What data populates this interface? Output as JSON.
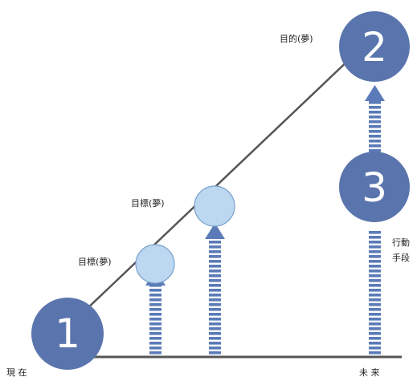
{
  "nodes": {
    "start": {
      "number": "1"
    },
    "purpose": {
      "number": "2",
      "label": "目的(夢)"
    },
    "action": {
      "number": "3"
    },
    "goal1": {
      "label": "目標(夢)"
    },
    "goal2": {
      "label": "目標(夢)"
    }
  },
  "side_label": {
    "line1": "行動",
    "line2": "手段"
  },
  "axis": {
    "start_label": "現 在",
    "end_label": "未 来"
  },
  "colors": {
    "big_circle": "#5a75ad",
    "small_circle": "#bcd7f0",
    "small_circle_stroke": "#7aa0cc",
    "arrow": "#5b7bb8",
    "line": "#555555"
  }
}
